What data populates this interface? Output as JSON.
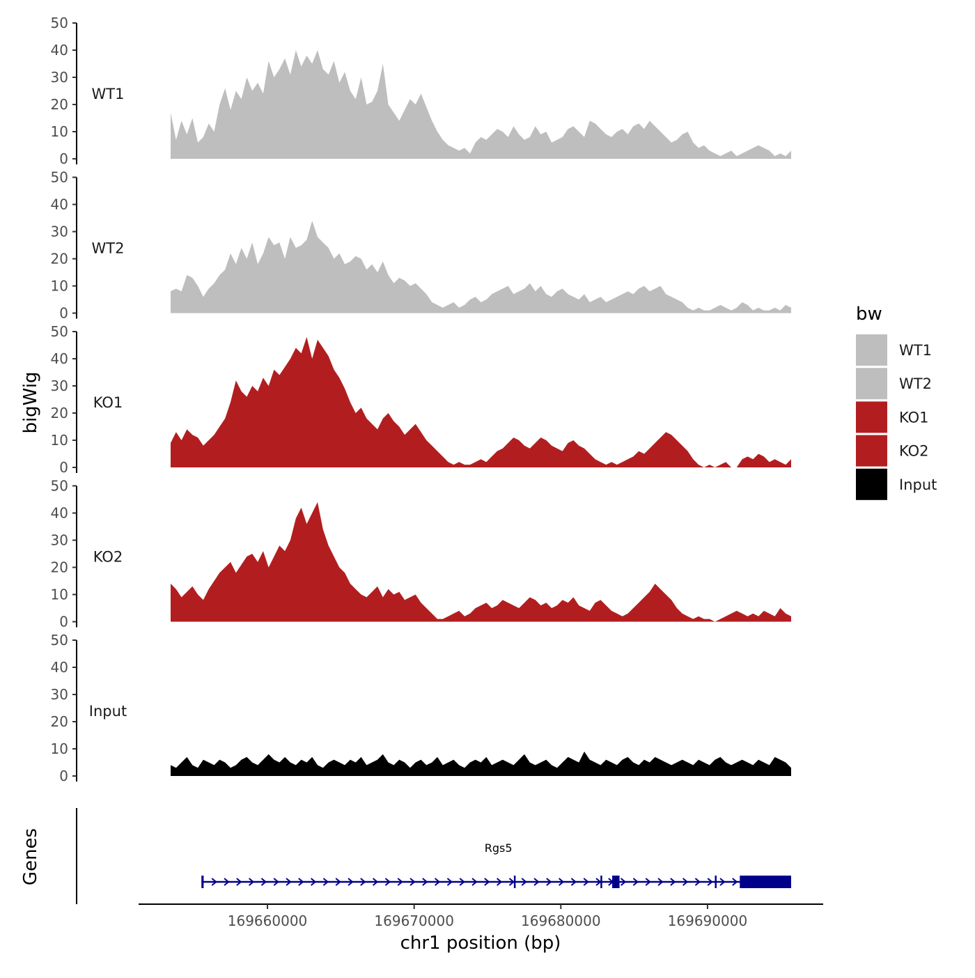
{
  "chart_data": {
    "type": "area",
    "y_title": "bigWig",
    "x_title": "chr1 position (bp)",
    "genes_title": "Genes",
    "x_range": [
      169653400,
      169695700
    ],
    "x_ticks": [
      169660000,
      169670000,
      169680000,
      169690000
    ],
    "x_tick_labels": [
      "169660000",
      "169670000",
      "169680000",
      "169690000"
    ],
    "y_range": [
      0,
      50
    ],
    "y_ticks": [
      0,
      10,
      20,
      30,
      40,
      50
    ],
    "y_tick_labels": [
      "0",
      "10",
      "20",
      "30",
      "40",
      "50"
    ],
    "legend": {
      "title": "bw",
      "items": [
        {
          "label": "WT1",
          "color": "#bebebe"
        },
        {
          "label": "WT2",
          "color": "#bebebe"
        },
        {
          "label": "KO1",
          "color": "#b21e1f"
        },
        {
          "label": "KO2",
          "color": "#b21e1f"
        },
        {
          "label": "Input",
          "color": "#000000"
        }
      ]
    },
    "series": [
      {
        "name": "WT1",
        "color": "#bebebe",
        "values": [
          17,
          7,
          14,
          9,
          15,
          6,
          8,
          13,
          10,
          20,
          26,
          18,
          25,
          22,
          30,
          25,
          28,
          24,
          36,
          30,
          33,
          37,
          31,
          40,
          34,
          38,
          35,
          40,
          33,
          31,
          36,
          28,
          32,
          25,
          22,
          30,
          20,
          21,
          25,
          35,
          20,
          17,
          14,
          18,
          22,
          20,
          24,
          19,
          14,
          10,
          7,
          5,
          4,
          3,
          4,
          2,
          6,
          8,
          7,
          9,
          11,
          10,
          8,
          12,
          9,
          7,
          8,
          12,
          9,
          10,
          6,
          7,
          8,
          11,
          12,
          10,
          8,
          14,
          13,
          11,
          9,
          8,
          10,
          11,
          9,
          12,
          13,
          11,
          14,
          12,
          10,
          8,
          6,
          7,
          9,
          10,
          6,
          4,
          5,
          3,
          2,
          1,
          2,
          3,
          1,
          2,
          3,
          4,
          5,
          4,
          3,
          1,
          2,
          1,
          3
        ]
      },
      {
        "name": "WT2",
        "color": "#bebebe",
        "values": [
          8,
          9,
          8,
          14,
          13,
          10,
          6,
          9,
          11,
          14,
          16,
          22,
          18,
          24,
          20,
          26,
          18,
          22,
          28,
          25,
          26,
          20,
          28,
          24,
          25,
          27,
          34,
          28,
          26,
          24,
          20,
          22,
          18,
          19,
          21,
          20,
          16,
          18,
          15,
          19,
          14,
          11,
          13,
          12,
          10,
          11,
          9,
          7,
          4,
          3,
          2,
          3,
          4,
          2,
          3,
          5,
          6,
          4,
          5,
          7,
          8,
          9,
          10,
          7,
          8,
          9,
          11,
          8,
          10,
          7,
          6,
          8,
          9,
          7,
          6,
          5,
          7,
          4,
          5,
          6,
          4,
          5,
          6,
          7,
          8,
          7,
          9,
          10,
          8,
          9,
          10,
          7,
          6,
          5,
          4,
          2,
          1,
          2,
          1,
          1,
          2,
          3,
          2,
          1,
          2,
          4,
          3,
          1,
          2,
          1,
          1,
          2,
          1,
          3,
          2
        ]
      },
      {
        "name": "KO1",
        "color": "#b21e1f",
        "values": [
          9,
          13,
          10,
          14,
          12,
          11,
          8,
          10,
          12,
          15,
          18,
          24,
          32,
          28,
          26,
          30,
          28,
          33,
          30,
          36,
          34,
          37,
          40,
          44,
          42,
          48,
          40,
          47,
          44,
          41,
          36,
          33,
          29,
          24,
          20,
          22,
          18,
          16,
          14,
          18,
          20,
          17,
          15,
          12,
          14,
          16,
          13,
          10,
          8,
          6,
          4,
          2,
          1,
          2,
          1,
          1,
          2,
          3,
          2,
          4,
          6,
          7,
          9,
          11,
          10,
          8,
          7,
          9,
          11,
          10,
          8,
          7,
          6,
          9,
          10,
          8,
          7,
          5,
          3,
          2,
          1,
          2,
          1,
          2,
          3,
          4,
          6,
          5,
          7,
          9,
          11,
          13,
          12,
          10,
          8,
          6,
          3,
          1,
          0,
          1,
          0,
          1,
          2,
          0,
          0,
          3,
          4,
          3,
          5,
          4,
          2,
          3,
          2,
          1,
          3
        ]
      },
      {
        "name": "KO2",
        "color": "#b21e1f",
        "values": [
          14,
          12,
          9,
          11,
          13,
          10,
          8,
          12,
          15,
          18,
          20,
          22,
          18,
          21,
          24,
          25,
          22,
          26,
          20,
          24,
          28,
          26,
          30,
          38,
          42,
          36,
          40,
          44,
          34,
          28,
          24,
          20,
          18,
          14,
          12,
          10,
          9,
          11,
          13,
          9,
          12,
          10,
          11,
          8,
          9,
          10,
          7,
          5,
          3,
          1,
          1,
          2,
          3,
          4,
          2,
          3,
          5,
          6,
          7,
          5,
          6,
          8,
          7,
          6,
          5,
          7,
          9,
          8,
          6,
          7,
          5,
          6,
          8,
          7,
          9,
          6,
          5,
          4,
          7,
          8,
          6,
          4,
          3,
          2,
          3,
          5,
          7,
          9,
          11,
          14,
          12,
          10,
          8,
          5,
          3,
          2,
          1,
          2,
          1,
          1,
          0,
          1,
          2,
          3,
          4,
          3,
          2,
          3,
          2,
          4,
          3,
          2,
          5,
          3,
          2
        ]
      },
      {
        "name": "Input",
        "color": "#000000",
        "values": [
          4,
          3,
          5,
          7,
          4,
          3,
          6,
          5,
          4,
          6,
          5,
          3,
          4,
          6,
          7,
          5,
          4,
          6,
          8,
          6,
          5,
          7,
          5,
          4,
          6,
          5,
          7,
          4,
          3,
          5,
          6,
          5,
          4,
          6,
          5,
          7,
          4,
          5,
          6,
          8,
          5,
          4,
          6,
          5,
          3,
          5,
          6,
          4,
          5,
          7,
          4,
          5,
          6,
          4,
          3,
          5,
          6,
          5,
          7,
          4,
          5,
          6,
          5,
          4,
          6,
          8,
          5,
          4,
          5,
          6,
          4,
          3,
          5,
          7,
          6,
          5,
          9,
          6,
          5,
          4,
          6,
          5,
          4,
          6,
          7,
          5,
          4,
          6,
          5,
          7,
          6,
          5,
          4,
          5,
          6,
          5,
          4,
          6,
          5,
          4,
          6,
          7,
          5,
          4,
          5,
          6,
          5,
          4,
          6,
          5,
          4,
          7,
          6,
          5,
          3
        ]
      }
    ],
    "genes": [
      {
        "name": "Rgs5",
        "strand": "+",
        "start": 169655500,
        "end": 169695700,
        "exons": [
          [
            169655500,
            169655650
          ],
          [
            169676800,
            169676900
          ],
          [
            169682700,
            169682800
          ],
          [
            169683500,
            169684000
          ],
          [
            169690500,
            169690600
          ],
          [
            169692200,
            169695700
          ]
        ]
      }
    ]
  }
}
